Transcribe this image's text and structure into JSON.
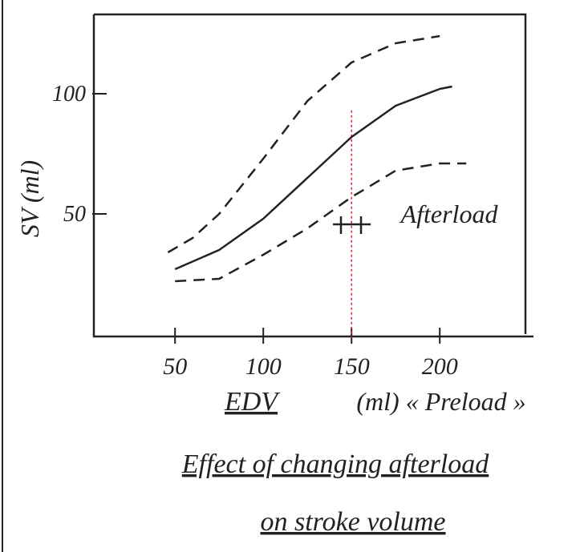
{
  "chart_data": {
    "type": "line",
    "title": [
      "Effect of changing afterload",
      "on stroke volume"
    ],
    "x_label": "EDV",
    "x_label_note": "(ml) « Preload »",
    "y_label": "SV (ml)",
    "annotation": "Afterload",
    "series": [
      {
        "color": "#222",
        "dashed": true,
        "x": [
          46,
          60,
          75,
          100,
          125,
          150,
          175,
          200
        ],
        "values": [
          34,
          40,
          50,
          73,
          97,
          113,
          121,
          124
        ]
      },
      {
        "color": "#222",
        "dashed": false,
        "x": [
          50,
          75,
          100,
          125,
          150,
          175,
          200,
          207
        ],
        "values": [
          27,
          35,
          48,
          65,
          82,
          95,
          102,
          103
        ]
      },
      {
        "color": "#222",
        "dashed": true,
        "x": [
          50,
          75,
          100,
          125,
          150,
          175,
          200,
          215
        ],
        "values": [
          22,
          23,
          33,
          44,
          57,
          68,
          71,
          71
        ]
      }
    ],
    "reference_line": {
      "x": 150,
      "color": "#e0202a"
    },
    "xlim": [
      4,
      244
    ],
    "ylim": [
      0,
      133
    ],
    "xticks": [
      50,
      100,
      150,
      200
    ],
    "yticks": [
      50,
      100
    ]
  }
}
